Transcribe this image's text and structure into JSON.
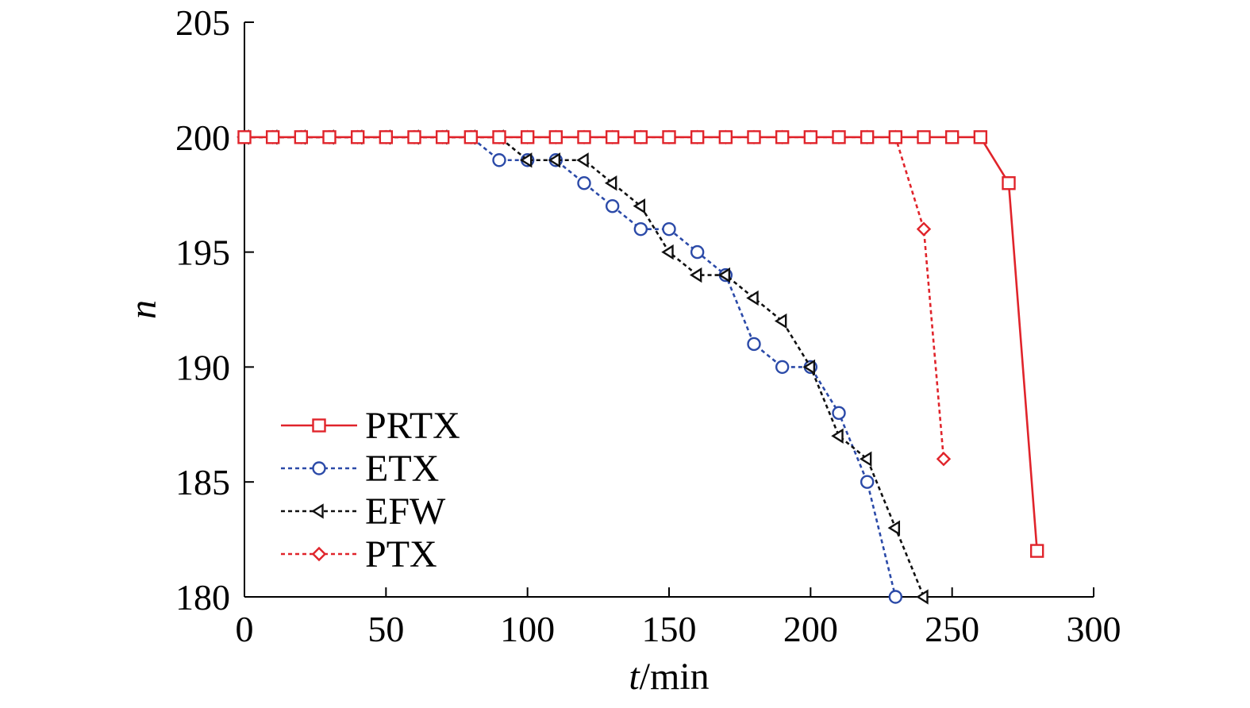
{
  "chart_data": {
    "type": "line",
    "xlabel": "t/min",
    "xlabel_italic": "t",
    "xlabel_rest": "/min",
    "ylabel": "n",
    "xlim": [
      0,
      300
    ],
    "ylim": [
      180,
      205
    ],
    "xticks": [
      0,
      50,
      100,
      150,
      200,
      250,
      300
    ],
    "yticks": [
      180,
      185,
      190,
      195,
      200,
      205
    ],
    "grid": false,
    "legend_position": "lower-left",
    "series": [
      {
        "name": "PRTX",
        "color": "#e0242b",
        "dash": "solid",
        "marker": "square",
        "x": [
          0,
          10,
          20,
          30,
          40,
          50,
          60,
          70,
          80,
          90,
          100,
          110,
          120,
          130,
          140,
          150,
          160,
          170,
          180,
          190,
          200,
          210,
          220,
          230,
          240,
          250,
          260,
          270,
          280
        ],
        "y": [
          200,
          200,
          200,
          200,
          200,
          200,
          200,
          200,
          200,
          200,
          200,
          200,
          200,
          200,
          200,
          200,
          200,
          200,
          200,
          200,
          200,
          200,
          200,
          200,
          200,
          200,
          200,
          198,
          182
        ]
      },
      {
        "name": "ETX",
        "color": "#2b4aa8",
        "dash": "dotted",
        "marker": "circle",
        "x": [
          0,
          10,
          20,
          30,
          40,
          50,
          60,
          70,
          80,
          90,
          100,
          110,
          120,
          130,
          140,
          150,
          160,
          170,
          180,
          190,
          200,
          210,
          220,
          230
        ],
        "y": [
          200,
          200,
          200,
          200,
          200,
          200,
          200,
          200,
          200,
          199,
          199,
          199,
          198,
          197,
          196,
          196,
          195,
          194,
          191,
          190,
          190,
          188,
          185,
          180
        ]
      },
      {
        "name": "EFW",
        "color": "#111111",
        "dash": "dotted",
        "marker": "triangle-left",
        "x": [
          0,
          10,
          20,
          30,
          40,
          50,
          60,
          70,
          80,
          90,
          100,
          110,
          120,
          130,
          140,
          150,
          160,
          170,
          180,
          190,
          200,
          210,
          220,
          230,
          240
        ],
        "y": [
          200,
          200,
          200,
          200,
          200,
          200,
          200,
          200,
          200,
          200,
          199,
          199,
          199,
          198,
          197,
          195,
          194,
          194,
          193,
          192,
          190,
          187,
          186,
          183,
          180
        ]
      },
      {
        "name": "PTX",
        "color": "#e0242b",
        "dash": "dotted",
        "marker": "diamond",
        "x": [
          0,
          10,
          20,
          30,
          40,
          50,
          60,
          70,
          80,
          90,
          100,
          110,
          120,
          130,
          140,
          150,
          160,
          170,
          180,
          190,
          200,
          210,
          220,
          230,
          240,
          247
        ],
        "y": [
          200,
          200,
          200,
          200,
          200,
          200,
          200,
          200,
          200,
          200,
          200,
          200,
          200,
          200,
          200,
          200,
          200,
          200,
          200,
          200,
          200,
          200,
          200,
          200,
          196,
          186
        ]
      }
    ]
  }
}
